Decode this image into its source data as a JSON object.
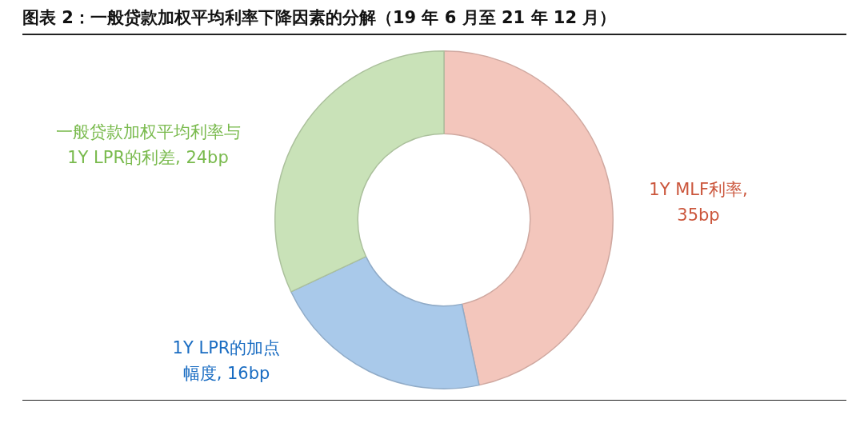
{
  "chart_data": {
    "type": "donut",
    "title": "图表 2：一般贷款加权平均利率下降因素的分解（19 年 6 月至 21 年 12 月）",
    "categories": [
      "1Y MLF利率, 35bp",
      "1Y LPR的加点幅度, 16bp",
      "一般贷款加权平均利率与1Y LPR的利差, 24bp"
    ],
    "values": [
      35,
      16,
      24
    ],
    "colors": [
      "#f3c6bc",
      "#a9c9ea",
      "#c9e2b8"
    ]
  }
}
